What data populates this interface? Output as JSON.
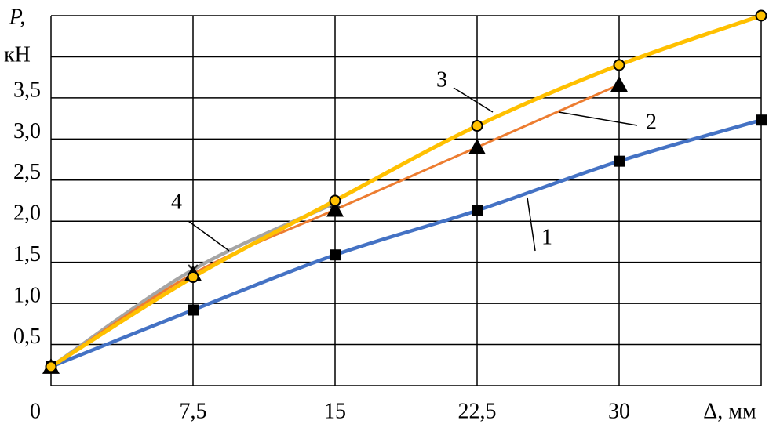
{
  "chart_data": {
    "type": "line",
    "y_label_1": "P,",
    "y_label_2": "кН",
    "x_label": "Δ, мм",
    "xlim": [
      0,
      37.5
    ],
    "ylim": [
      0,
      4.5
    ],
    "xticks": [
      {
        "value": 0,
        "label": "0"
      },
      {
        "value": 7.5,
        "label": "7,5"
      },
      {
        "value": 15,
        "label": "15"
      },
      {
        "value": 22.5,
        "label": "22,5"
      },
      {
        "value": 30,
        "label": "30"
      },
      {
        "value": 37.5,
        "label": null
      }
    ],
    "yticks": [
      {
        "value": 0,
        "label": null
      },
      {
        "value": 0.5,
        "label": "0,5"
      },
      {
        "value": 1,
        "label": "1,0"
      },
      {
        "value": 1.5,
        "label": "1,5"
      },
      {
        "value": 2,
        "label": "2,0"
      },
      {
        "value": 2.5,
        "label": "2,5"
      },
      {
        "value": 3,
        "label": "3,0"
      },
      {
        "value": 3.5,
        "label": "3,5"
      },
      {
        "value": 4,
        "label": null
      },
      {
        "value": 4.5,
        "label": null
      }
    ],
    "grid": true,
    "series": [
      {
        "name": "4",
        "color": "#a5a5a5",
        "marker": "x",
        "x": [
          0,
          7.5,
          15
        ],
        "values": [
          0.23,
          1.41,
          2.22
        ]
      },
      {
        "name": "1",
        "color": "#4472c4",
        "marker": "square",
        "x": [
          0,
          7.5,
          15,
          22.5,
          30,
          37.5
        ],
        "values": [
          0.23,
          0.92,
          1.59,
          2.13,
          2.73,
          3.23
        ]
      },
      {
        "name": "2",
        "color": "#ed7d31",
        "marker": "triangle",
        "x": [
          0,
          7.5,
          15,
          22.5,
          30
        ],
        "values": [
          0.23,
          1.36,
          2.14,
          2.9,
          3.66
        ]
      },
      {
        "name": "3",
        "color": "#ffc000",
        "marker": "circle",
        "x": [
          0,
          7.5,
          15,
          22.5,
          30,
          37.5
        ],
        "values": [
          0.23,
          1.32,
          2.25,
          3.16,
          3.9,
          4.5
        ]
      }
    ]
  }
}
